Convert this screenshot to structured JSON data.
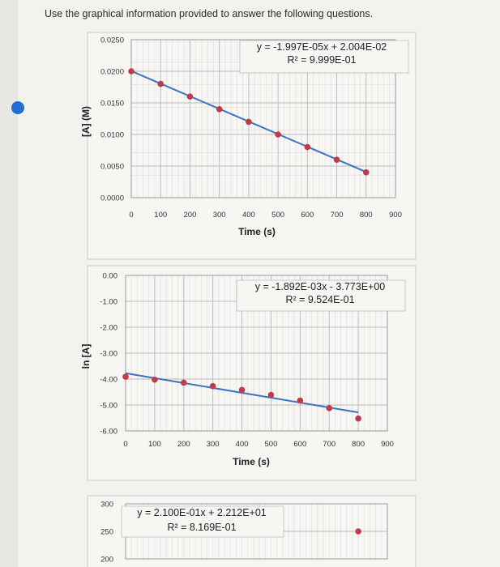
{
  "prompt": "Use the graphical information provided to answer the following questions.",
  "chart_data": [
    {
      "type": "scatter",
      "x": [
        0,
        100,
        200,
        300,
        400,
        500,
        600,
        700,
        800
      ],
      "y": [
        0.02,
        0.018,
        0.016,
        0.014,
        0.012,
        0.01,
        0.008,
        0.006,
        0.004
      ],
      "xlabel": "Time (s)",
      "ylabel": "[A] (M)",
      "xlim": [
        0,
        900
      ],
      "ylim": [
        0,
        0.025
      ],
      "xticks": [
        "0",
        "100",
        "200",
        "300",
        "400",
        "500",
        "600",
        "700",
        "800",
        "900"
      ],
      "yticks": [
        "0.0000",
        "0.0050",
        "0.0100",
        "0.0150",
        "0.0200",
        "0.0250"
      ],
      "trendline": {
        "slope": -1.997e-05,
        "intercept": 0.02004
      },
      "equation": "y = -1.997E-05x + 2.004E-02",
      "r2": "R² = 9.999E-01",
      "grid": true,
      "colors": {
        "marker": "#c23a4a",
        "line": "#3b74c4"
      }
    },
    {
      "type": "scatter",
      "x": [
        0,
        100,
        200,
        300,
        400,
        500,
        600,
        700,
        800
      ],
      "y": [
        -3.91,
        -4.02,
        -4.14,
        -4.27,
        -4.42,
        -4.61,
        -4.83,
        -5.12,
        -5.52
      ],
      "xlabel": "Time (s)",
      "ylabel": "ln [A]",
      "xlim": [
        0,
        900
      ],
      "ylim": [
        -6,
        0
      ],
      "xticks": [
        "0",
        "100",
        "200",
        "300",
        "400",
        "500",
        "600",
        "700",
        "800",
        "900"
      ],
      "yticks": [
        "-6.00",
        "-5.00",
        "-4.00",
        "-3.00",
        "-2.00",
        "-1.00",
        "0.00"
      ],
      "trendline": {
        "slope": -0.001892,
        "intercept": -3.773
      },
      "equation": "y = -1.892E-03x - 3.773E+00",
      "r2": "R² = 9.524E-01",
      "grid": true,
      "colors": {
        "marker": "#c23a4a",
        "line": "#3b74c4"
      }
    },
    {
      "type": "scatter",
      "x": [
        800
      ],
      "y": [
        250
      ],
      "ylim": [
        200,
        300
      ],
      "yticks": [
        "200",
        "250",
        "300"
      ],
      "equation": "y = 2.100E-01x + 2.212E+01",
      "r2": "R² = 8.169E-01",
      "grid": true,
      "colors": {
        "marker": "#c23a4a",
        "line": "#3b74c4"
      }
    }
  ]
}
